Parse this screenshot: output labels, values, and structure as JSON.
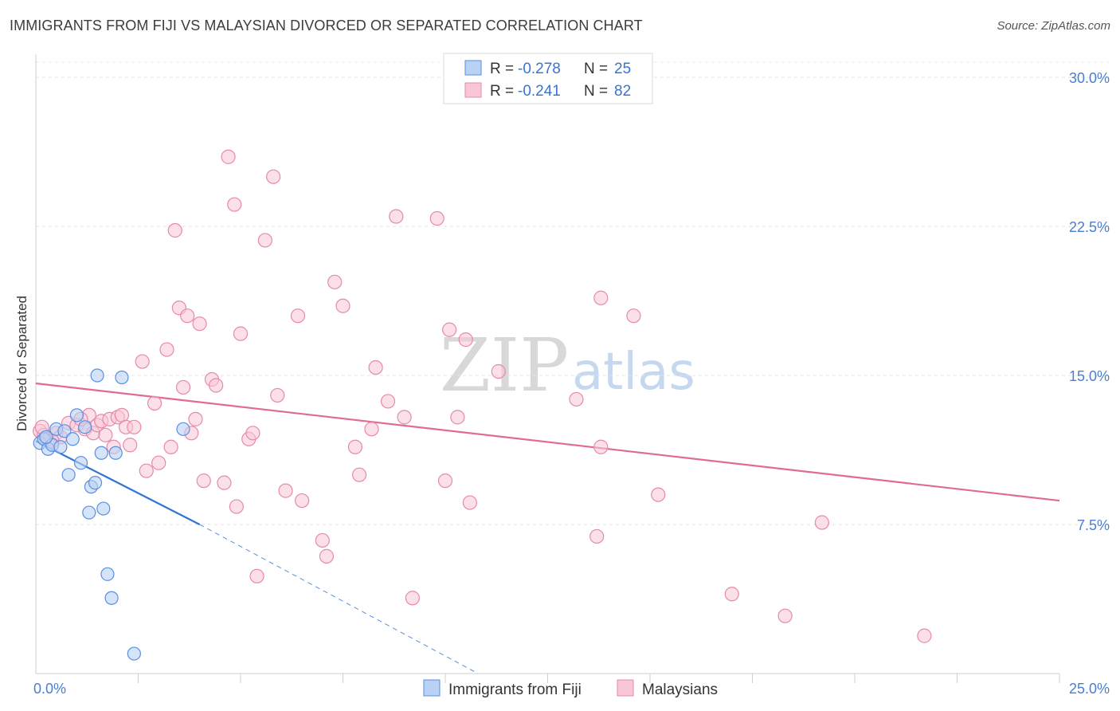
{
  "title": "IMMIGRANTS FROM FIJI VS MALAYSIAN DIVORCED OR SEPARATED CORRELATION CHART",
  "source": "Source: ZipAtlas.com",
  "watermark": {
    "zip": "ZIP",
    "atlas": "atlas"
  },
  "colors": {
    "blue": "#5b8ee0",
    "blue_fill": "#b9d2f4",
    "blue_line": "#2f74d0",
    "pink": "#e58aa9",
    "pink_fill": "#f9c6d6",
    "pink_line": "#e06b96",
    "tick": "#4a7fd0"
  },
  "legend": {
    "r_label": "R =",
    "n_label": "N =",
    "rows": [
      {
        "r": "-0.278",
        "n": "25"
      },
      {
        "r": "-0.241",
        "n": "82"
      }
    ]
  },
  "chart_data": {
    "type": "scatter",
    "ylabel": "Divorced or Separated",
    "xlim": [
      0,
      25
    ],
    "ylim": [
      0,
      30
    ],
    "x_ticks": [
      0,
      25
    ],
    "x_tick_labels": [
      "0.0%",
      "25.0%"
    ],
    "y_ticks": [
      7.5,
      15.0,
      22.5,
      30.0
    ],
    "y_tick_labels": [
      "7.5%",
      "15.0%",
      "22.5%",
      "30.0%"
    ],
    "grid": true,
    "legend_position": "top-center",
    "series": [
      {
        "name": "Immigrants from Fiji",
        "points": [
          [
            0.1,
            11.6
          ],
          [
            0.2,
            11.8
          ],
          [
            0.3,
            11.3
          ],
          [
            0.4,
            11.5
          ],
          [
            0.5,
            12.3
          ],
          [
            0.6,
            11.4
          ],
          [
            0.7,
            12.2
          ],
          [
            0.8,
            10.0
          ],
          [
            0.9,
            11.8
          ],
          [
            1.0,
            13.0
          ],
          [
            1.1,
            10.6
          ],
          [
            1.2,
            12.4
          ],
          [
            1.3,
            8.1
          ],
          [
            1.35,
            9.4
          ],
          [
            1.45,
            9.6
          ],
          [
            1.5,
            15.0
          ],
          [
            1.6,
            11.1
          ],
          [
            1.65,
            8.3
          ],
          [
            1.75,
            5.0
          ],
          [
            1.85,
            3.8
          ],
          [
            1.95,
            11.1
          ],
          [
            2.1,
            14.9
          ],
          [
            2.4,
            1.0
          ],
          [
            3.6,
            12.3
          ],
          [
            0.25,
            11.9
          ]
        ],
        "trend": {
          "x": [
            0,
            4.0
          ],
          "y": [
            11.7,
            7.5
          ]
        },
        "trend_extension": {
          "x": [
            4.0,
            10.8
          ],
          "y": [
            7.5,
            0.0
          ]
        }
      },
      {
        "name": "Malaysians",
        "points": [
          [
            0.1,
            12.2
          ],
          [
            0.2,
            12.0
          ],
          [
            0.3,
            11.8
          ],
          [
            0.5,
            12.1
          ],
          [
            0.6,
            11.9
          ],
          [
            0.8,
            12.6
          ],
          [
            1.0,
            12.5
          ],
          [
            1.2,
            12.3
          ],
          [
            1.3,
            13.0
          ],
          [
            1.4,
            12.1
          ],
          [
            1.5,
            12.5
          ],
          [
            1.6,
            12.7
          ],
          [
            1.7,
            12.0
          ],
          [
            1.8,
            12.8
          ],
          [
            1.9,
            11.4
          ],
          [
            2.0,
            12.9
          ],
          [
            2.1,
            13.0
          ],
          [
            2.2,
            12.4
          ],
          [
            2.3,
            11.5
          ],
          [
            2.4,
            12.4
          ],
          [
            2.6,
            15.7
          ],
          [
            2.7,
            10.2
          ],
          [
            2.9,
            13.6
          ],
          [
            3.0,
            10.6
          ],
          [
            3.2,
            16.3
          ],
          [
            3.3,
            11.4
          ],
          [
            3.4,
            22.3
          ],
          [
            3.5,
            18.4
          ],
          [
            3.6,
            14.4
          ],
          [
            3.7,
            18.0
          ],
          [
            3.8,
            12.1
          ],
          [
            3.9,
            12.8
          ],
          [
            4.0,
            17.6
          ],
          [
            4.1,
            9.7
          ],
          [
            4.3,
            14.8
          ],
          [
            4.4,
            14.5
          ],
          [
            4.6,
            9.6
          ],
          [
            4.7,
            26.0
          ],
          [
            4.85,
            23.6
          ],
          [
            4.9,
            8.4
          ],
          [
            5.0,
            17.1
          ],
          [
            5.2,
            11.8
          ],
          [
            5.3,
            12.1
          ],
          [
            5.4,
            4.9
          ],
          [
            5.6,
            21.8
          ],
          [
            5.8,
            25.0
          ],
          [
            5.9,
            14.0
          ],
          [
            6.1,
            9.2
          ],
          [
            6.4,
            18.0
          ],
          [
            6.5,
            8.7
          ],
          [
            7.0,
            6.7
          ],
          [
            7.1,
            5.9
          ],
          [
            7.3,
            19.7
          ],
          [
            7.5,
            18.5
          ],
          [
            7.8,
            11.4
          ],
          [
            7.9,
            10.0
          ],
          [
            8.2,
            12.3
          ],
          [
            8.3,
            15.4
          ],
          [
            8.6,
            13.7
          ],
          [
            8.8,
            23.0
          ],
          [
            9.0,
            12.9
          ],
          [
            9.2,
            3.8
          ],
          [
            9.8,
            22.9
          ],
          [
            10.0,
            9.7
          ],
          [
            10.1,
            17.3
          ],
          [
            10.3,
            12.9
          ],
          [
            10.5,
            16.8
          ],
          [
            10.6,
            8.6
          ],
          [
            11.3,
            15.2
          ],
          [
            13.2,
            13.8
          ],
          [
            13.7,
            6.9
          ],
          [
            13.8,
            18.9
          ],
          [
            13.8,
            11.4
          ],
          [
            14.6,
            18.0
          ],
          [
            15.2,
            9.0
          ],
          [
            17.0,
            4.0
          ],
          [
            18.3,
            2.9
          ],
          [
            19.2,
            7.6
          ],
          [
            21.7,
            1.9
          ],
          [
            0.15,
            12.4
          ],
          [
            0.4,
            11.7
          ],
          [
            1.1,
            12.8
          ]
        ],
        "trend": {
          "x": [
            0,
            25
          ],
          "y": [
            14.6,
            8.7
          ]
        }
      }
    ]
  },
  "bottom_legend": [
    {
      "label": "Immigrants from Fiji"
    },
    {
      "label": "Malaysians"
    }
  ]
}
